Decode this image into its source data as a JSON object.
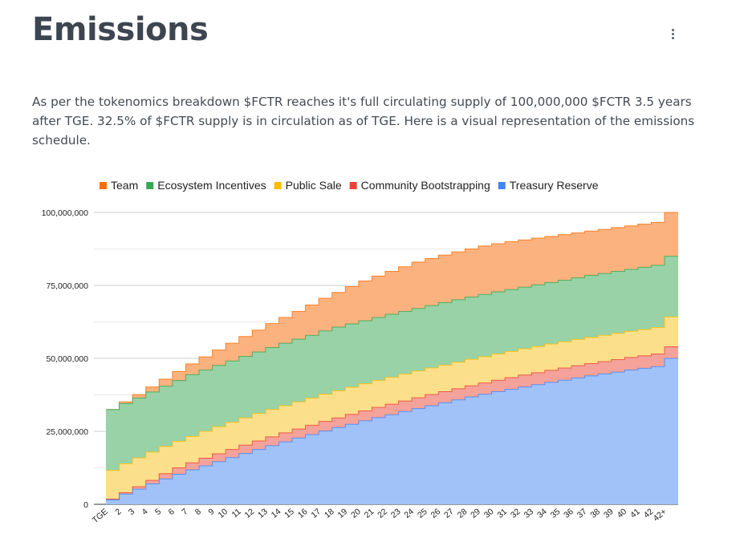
{
  "page": {
    "title": "Emissions",
    "description": "As per the tokenomics breakdown $FCTR reaches it's full circulating supply of 100,000,000 $FCTR 3.5 years after TGE. 32.5% of $FCTR supply is in circulation as of TGE. Here is a visual representation of the emissions schedule.",
    "menu_icon": "more-vertical-icon"
  },
  "chart_data": {
    "type": "area",
    "stacked": true,
    "step": true,
    "legend_position": "top",
    "grid": true,
    "ylim": [
      0,
      100000000
    ],
    "y_ticks": [
      0,
      25000000,
      50000000,
      75000000,
      100000000
    ],
    "y_tick_labels": [
      "0",
      "25,000,000",
      "50,000,000",
      "75,000,000",
      "100,000,000"
    ],
    "categories": [
      "TGE",
      "2",
      "3",
      "4",
      "5",
      "6",
      "7",
      "8",
      "9",
      "10",
      "11",
      "12",
      "13",
      "14",
      "15",
      "16",
      "17",
      "18",
      "19",
      "20",
      "21",
      "22",
      "23",
      "24",
      "25",
      "26",
      "27",
      "28",
      "29",
      "30",
      "31",
      "32",
      "33",
      "34",
      "35",
      "36",
      "37",
      "38",
      "39",
      "40",
      "41",
      "42",
      "42+"
    ],
    "cumulative_series_top": [
      {
        "name": "Treasury Reserve",
        "color": "#4285f4",
        "fill": "#a0c2f9",
        "values": [
          1500000,
          3500000,
          5200000,
          7000000,
          8700000,
          10300000,
          11800000,
          13200000,
          14600000,
          16000000,
          17400000,
          18800000,
          20100000,
          21400000,
          22700000,
          23900000,
          25100000,
          26300000,
          27400000,
          28600000,
          29700000,
          30700000,
          31800000,
          32800000,
          33800000,
          34800000,
          35800000,
          36800000,
          37700000,
          38600000,
          39400000,
          40200000,
          41000000,
          41800000,
          42500000,
          43300000,
          44000000,
          44700000,
          45300000,
          46000000,
          46600000,
          47200000,
          50000000
        ]
      },
      {
        "name": "Community Bootstrapping",
        "color": "#ea4335",
        "fill": "#f4a29a",
        "values": [
          1800000,
          4000000,
          6000000,
          8200000,
          10500000,
          12500000,
          14200000,
          15800000,
          17300000,
          18800000,
          20300000,
          21700000,
          23100000,
          24500000,
          25800000,
          27100000,
          28400000,
          29600000,
          30800000,
          32000000,
          33200000,
          34300000,
          35400000,
          36500000,
          37600000,
          38600000,
          39600000,
          40600000,
          41600000,
          42500000,
          43400000,
          44300000,
          45100000,
          45900000,
          46700000,
          47500000,
          48200000,
          48900000,
          49600000,
          50300000,
          50900000,
          51500000,
          54000000
        ]
      },
      {
        "name": "Public Sale",
        "color": "#fbbc04",
        "fill": "#fcdf8a",
        "values": [
          11600000,
          13900000,
          15900000,
          17900000,
          19800000,
          21600000,
          23300000,
          25000000,
          26600000,
          28100000,
          29600000,
          31100000,
          32500000,
          33800000,
          35100000,
          36400000,
          37700000,
          38900000,
          40100000,
          41300000,
          42400000,
          43500000,
          44600000,
          45700000,
          46700000,
          47700000,
          48700000,
          49700000,
          50600000,
          51500000,
          52400000,
          53300000,
          54100000,
          54900000,
          55700000,
          56500000,
          57200000,
          57900000,
          58600000,
          59300000,
          59900000,
          60600000,
          64200000
        ]
      },
      {
        "name": "Ecosystem Incentives",
        "color": "#34a853",
        "fill": "#98d2a6",
        "values": [
          32500000,
          34500000,
          36400000,
          38500000,
          40500000,
          42400000,
          44400000,
          46000000,
          47600000,
          49100000,
          50700000,
          52200000,
          53700000,
          55200000,
          56600000,
          57900000,
          59400000,
          60700000,
          61800000,
          62900000,
          64000000,
          65100000,
          66100000,
          67100000,
          68100000,
          69100000,
          70100000,
          71000000,
          71900000,
          72800000,
          73600000,
          74400000,
          75200000,
          76000000,
          76800000,
          77600000,
          78400000,
          79100000,
          79800000,
          80500000,
          81200000,
          81900000,
          85000000
        ]
      },
      {
        "name": "Team",
        "color": "#ff6d01",
        "fill": "#fcb27f",
        "values": [
          32500000,
          35100000,
          37600000,
          40200000,
          42900000,
          45500000,
          48100000,
          50500000,
          52900000,
          55200000,
          57500000,
          59700000,
          61900000,
          64000000,
          66100000,
          68300000,
          70600000,
          72600000,
          74600000,
          76500000,
          78200000,
          79800000,
          81400000,
          83000000,
          84200000,
          85400000,
          86500000,
          87500000,
          88500000,
          89300000,
          90000000,
          90600000,
          91200000,
          91800000,
          92400000,
          93000000,
          93600000,
          94200000,
          94800000,
          95400000,
          96000000,
          96600000,
          100000000
        ]
      }
    ]
  }
}
